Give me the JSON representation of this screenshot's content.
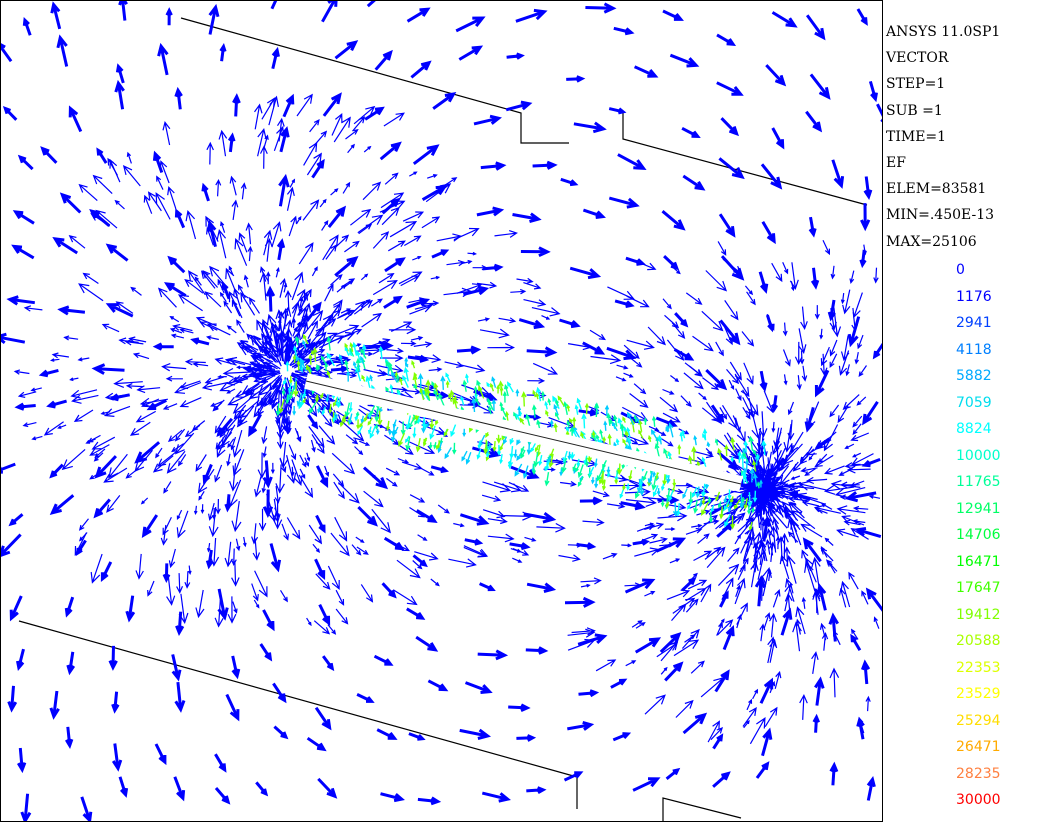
{
  "window": {
    "title": "ANSYS 11.0SP1"
  },
  "info": {
    "lines": [
      "ANSYS 11.0SP1",
      "VECTOR",
      "STEP=1",
      "SUB =1",
      "TIME=1",
      "EF",
      "ELEM=83581",
      "MIN=.450E-13",
      "MAX=25106"
    ]
  },
  "legend": {
    "entries": [
      {
        "label": "0",
        "color": "#0000ff"
      },
      {
        "label": "1176",
        "color": "#0000ff"
      },
      {
        "label": "2941",
        "color": "#0040ff"
      },
      {
        "label": "4118",
        "color": "#0080ff"
      },
      {
        "label": "5882",
        "color": "#00aaff"
      },
      {
        "label": "7059",
        "color": "#00ddee"
      },
      {
        "label": "8824",
        "color": "#00ffff"
      },
      {
        "label": "10000",
        "color": "#00ffcc"
      },
      {
        "label": "11765",
        "color": "#00ff99"
      },
      {
        "label": "12941",
        "color": "#00ff66"
      },
      {
        "label": "14706",
        "color": "#00ff40"
      },
      {
        "label": "16471",
        "color": "#00ff00"
      },
      {
        "label": "17647",
        "color": "#40ff00"
      },
      {
        "label": "19412",
        "color": "#80ff00"
      },
      {
        "label": "20588",
        "color": "#aaff00"
      },
      {
        "label": "22353",
        "color": "#ddff00"
      },
      {
        "label": "23529",
        "color": "#ffff00"
      },
      {
        "label": "25294",
        "color": "#ffdd00"
      },
      {
        "label": "26471",
        "color": "#ffaa00"
      },
      {
        "label": "28235",
        "color": "#ff8040"
      },
      {
        "label": "30000",
        "color": "#ff0000"
      }
    ]
  },
  "plot": {
    "vector_color": "#0000ff",
    "core_colors": [
      "#00ffff",
      "#00ff99",
      "#00ccff",
      "#80ff00"
    ]
  }
}
